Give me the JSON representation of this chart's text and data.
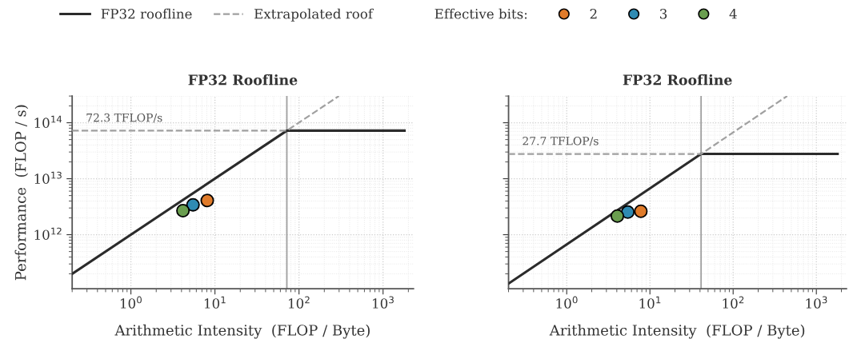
{
  "chart_data": [
    {
      "type": "line",
      "title": "FP32 Roofline",
      "xlabel": "Arithmetic Intensity  (FLOP / Byte)",
      "ylabel": "Performance  (FLOP / s)",
      "log": "xy",
      "grid": true,
      "legend": "top",
      "legend_title": "Effective bits:",
      "xlim": [
        0.2,
        2300
      ],
      "ylim": [
        108000000000.0,
        300000000000000.0
      ],
      "xticks": [
        {
          "value": 1,
          "label": "10$^{0}$"
        },
        {
          "value": 10,
          "label": "10$^{1}$"
        },
        {
          "value": 100,
          "label": "10$^{2}$"
        },
        {
          "value": 1000,
          "label": "10$^{3}$"
        }
      ],
      "yticks": [
        {
          "value": 1000000000000.0,
          "label": "10$^{12}$"
        },
        {
          "value": 10000000000000.0,
          "label": "10$^{13}$"
        },
        {
          "value": 100000000000000.0,
          "label": "10$^{14}$"
        }
      ],
      "series": [
        {
          "name": "FP32 roofline",
          "color": "#2b2b2b",
          "line_style": "solid",
          "marker": "none",
          "x": [
            0.2,
            71.7,
            1800
          ],
          "values": [
            200000000000.0,
            72300000000000.0,
            72300000000000.0
          ]
        },
        {
          "name": "Extrapolated roof",
          "color": "#a0a0a0",
          "line_style": "dashed",
          "marker": "none",
          "x": [
            0.2,
            71.7,
            298
          ],
          "values": [
            72300000000000.0,
            72300000000000.0,
            300000000000000.0
          ]
        },
        {
          "name": "2",
          "type": "scatter",
          "color": "#e07b2a",
          "marker": "circle",
          "x": [
            8.1
          ],
          "values": [
            4080000000000.0
          ]
        },
        {
          "name": "3",
          "type": "scatter",
          "color": "#2f8bb3",
          "marker": "circle",
          "x": [
            5.48
          ],
          "values": [
            3420000000000.0
          ]
        },
        {
          "name": "4",
          "type": "scatter",
          "color": "#6a9e4f",
          "marker": "circle",
          "x": [
            4.16
          ],
          "values": [
            2680000000000.0
          ]
        }
      ],
      "ref_lines": [
        {
          "axis": "x",
          "value": 71.7,
          "color": "#a0a0a0",
          "line_style": "solid"
        }
      ],
      "annotations": [
        "72.3 TFLOP/s"
      ]
    },
    {
      "type": "line",
      "title": "FP32 Roofline",
      "xlabel": "Arithmetic Intensity  (FLOP / Byte)",
      "log": "xy",
      "grid": true,
      "tick_labels": "x",
      "xlim": [
        0.2,
        2300
      ],
      "ylim": [
        108000000000.0,
        300000000000000.0
      ],
      "xticks": [
        {
          "value": 1,
          "label": "10$^{0}$"
        },
        {
          "value": 10,
          "label": "10$^{1}$"
        },
        {
          "value": 100,
          "label": "10$^{2}$"
        },
        {
          "value": 1000,
          "label": "10$^{3}$"
        }
      ],
      "yticks": [
        {
          "value": 1000000000000.0,
          "label": null
        },
        {
          "value": 10000000000000.0,
          "label": null
        },
        {
          "value": 100000000000000.0,
          "label": null
        }
      ],
      "series": [
        {
          "color": "#2b2b2b",
          "line_style": "solid",
          "marker": "none",
          "x": [
            0.2,
            41.2,
            1800
          ],
          "values": [
            134000000000.0,
            27700000000000.0,
            27700000000000.0
          ]
        },
        {
          "color": "#a0a0a0",
          "line_style": "dashed",
          "marker": "none",
          "x": [
            0.2,
            41.2,
            446
          ],
          "values": [
            27700000000000.0,
            27700000000000.0,
            300000000000000.0
          ]
        },
        {
          "type": "scatter",
          "color": "#e07b2a",
          "marker": "circle",
          "x": [
            7.78
          ],
          "values": [
            2620000000000.0
          ]
        },
        {
          "type": "scatter",
          "color": "#2f8bb3",
          "marker": "circle",
          "x": [
            5.42
          ],
          "values": [
            2530000000000.0
          ]
        },
        {
          "type": "scatter",
          "color": "#6a9e4f",
          "marker": "circle",
          "x": [
            4.06
          ],
          "values": [
            2150000000000.0
          ]
        }
      ],
      "ref_lines": [
        {
          "axis": "x",
          "value": 41.2,
          "color": "#a0a0a0",
          "line_style": "solid"
        }
      ],
      "annotations": [
        "27.7 TFLOP/s"
      ]
    }
  ]
}
